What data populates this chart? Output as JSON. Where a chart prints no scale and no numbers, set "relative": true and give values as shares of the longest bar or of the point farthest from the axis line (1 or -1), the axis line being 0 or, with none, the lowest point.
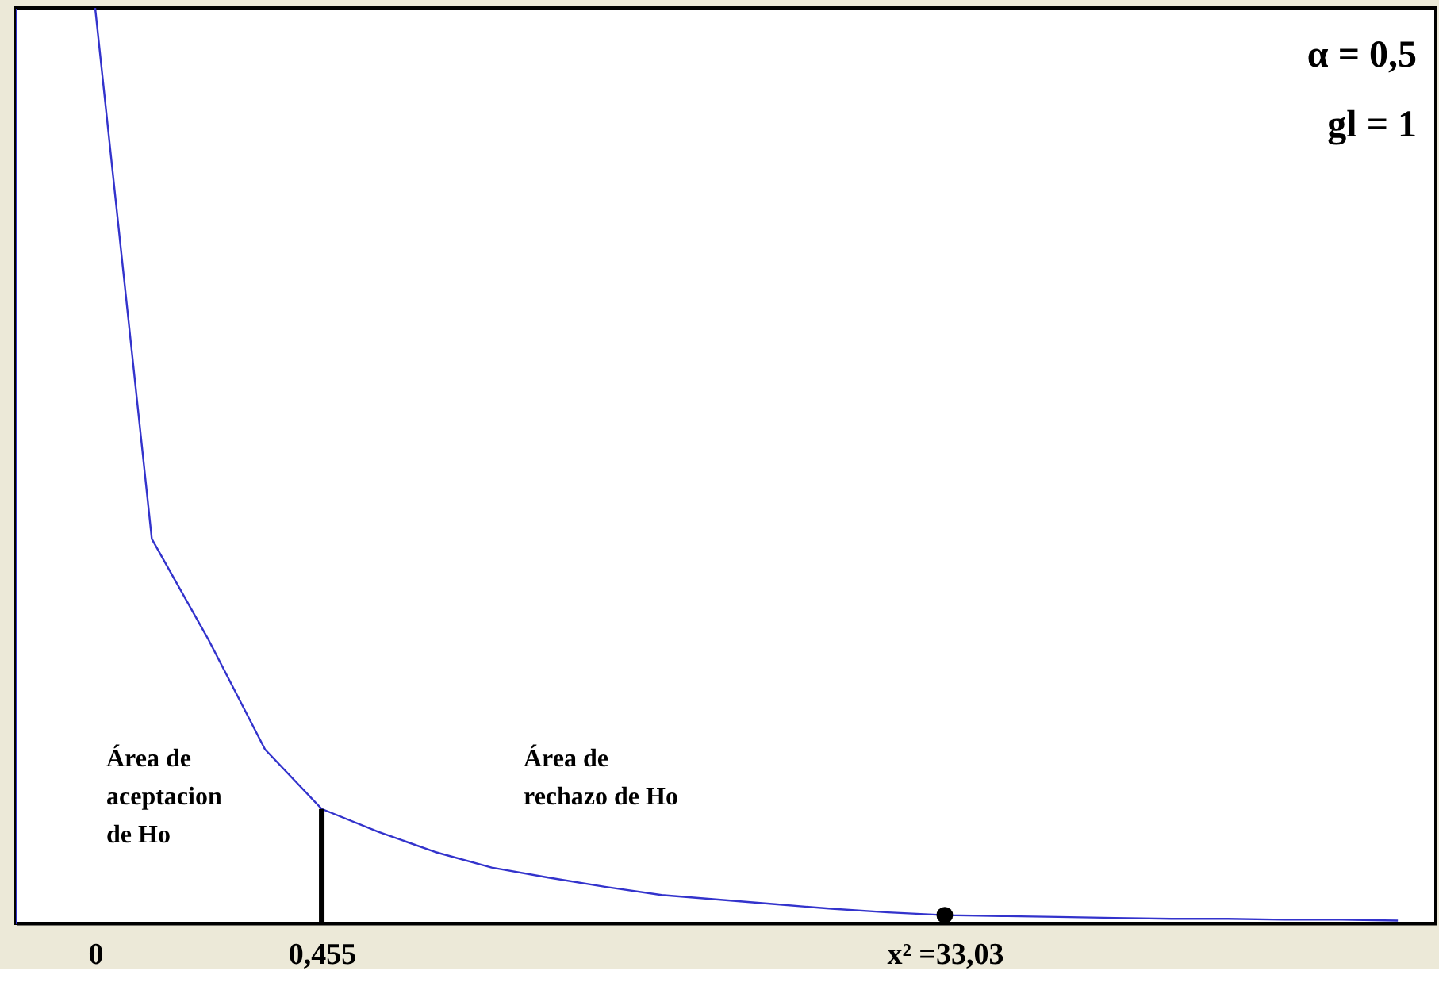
{
  "chart_data": {
    "type": "line",
    "relative": true,
    "grid": false,
    "line_style": "solid",
    "categories": [
      "0",
      null,
      null,
      null,
      "0,455",
      null,
      null,
      null,
      null,
      null,
      null,
      null,
      null,
      null,
      null,
      "x² =33,03",
      null,
      null,
      null,
      null,
      null,
      null,
      null,
      null
    ],
    "series": [
      {
        "color": "#3333cc",
        "marker": "none",
        "values": [
          1.0,
          0.42,
          0.31,
          0.19,
          0.125,
          0.1,
          0.078,
          0.061,
          0.05,
          0.04,
          0.031,
          0.026,
          0.021,
          0.016,
          0.012,
          0.009,
          0.008,
          0.007,
          0.006,
          0.005,
          0.005,
          0.004,
          0.004,
          0.003
        ]
      },
      {
        "type": "scatter",
        "marker": "circle",
        "color": "#000000",
        "x": [
          "x² =33,03"
        ],
        "values": [
          0.009
        ]
      }
    ],
    "ref_lines": [
      {
        "axis": "x",
        "value": "0,455",
        "color": "#000000"
      }
    ],
    "annotations": [
      "α = 0,5",
      "gl = 1",
      "Área de\naceptacion\nde Ho",
      "Área de\nrechazo de Ho"
    ]
  }
}
